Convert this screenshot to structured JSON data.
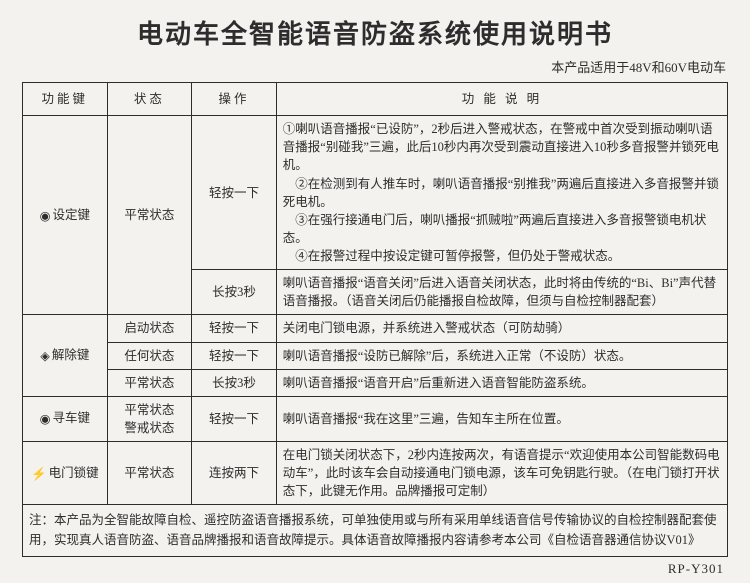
{
  "title": "电动车全智能语音防盗系统使用说明书",
  "subtitle": "本产品适用于48V和60V电动车",
  "headers": {
    "col1": "功能键",
    "col2": "状态",
    "col3": "操作",
    "col4": "功 能 说 明"
  },
  "icons": {
    "dot": "◉",
    "diamond": "◈",
    "bolt": "⚡"
  },
  "rows": {
    "r1": {
      "key_name": "设定键",
      "state": "平常状态",
      "op1": "轻按一下",
      "desc1": "①喇叭语音播报“已设防”，2秒后进入警戒状态，在警戒中首次受到振动喇叭语音播报“别碰我”三遍，此后10秒内再次受到震动直接进入10秒多音报警并锁死电机。",
      "desc1b": "②在检测到有人推车时，喇叭语音播报“别推我”两遍后直接进入多音报警并锁死电机。",
      "desc1c": "③在强行接通电门后，喇叭播报“抓贼啦”两遍后直接进入多音报警锁电机状态。",
      "desc1d": "④在报警过程中按设定键可暂停报警，但仍处于警戒状态。",
      "op2": "长按3秒",
      "desc2": "喇叭语音播报“语音关闭”后进入语音关闭状态，此时将由传统的“Bi、Bi”声代替语音播报。（语音关闭后仍能播报自检故障，但须与自检控制器配套）"
    },
    "r2": {
      "key_name": "解除键",
      "state1": "启动状态",
      "op1": "轻按一下",
      "desc1": "关闭电门锁电源，并系统进入警戒状态（可防劫骑）",
      "state2": "任何状态",
      "op2": "轻按一下",
      "desc2": "喇叭语音播报“设防已解除”后，系统进入正常（不设防）状态。",
      "state3": "平常状态",
      "op3": "长按3秒",
      "desc3": "喇叭语音播报“语音开启”后重新进入语音智能防盗系统。"
    },
    "r3": {
      "key_name": "寻车键",
      "state": "平常状态\n警戒状态",
      "op": "轻按一下",
      "desc": "喇叭语音播报“我在这里”三遍，告知车主所在位置。"
    },
    "r4": {
      "key_name": "电门锁键",
      "state": "平常状态",
      "op": "连按两下",
      "desc": "在电门锁关闭状态下，2秒内连按两次，有语音提示“欢迎使用本公司智能数码电动车”，此时该车会自动接通电门锁电源，该车可免钥匙行驶。（在电门锁打开状态下，此键无作用。品牌播报可定制）"
    }
  },
  "note": "注：本产品为全智能故障自检、遥控防盗语音播报系统，可单独使用或与所有采用单线语音信号传输协议的自检控制器配套使用，实现真人语音防盗、语音品牌播报和语音故障提示。具体语音故障播报内容请参考本公司《自检语音器通信协议V01》",
  "model": "RP-Y301"
}
